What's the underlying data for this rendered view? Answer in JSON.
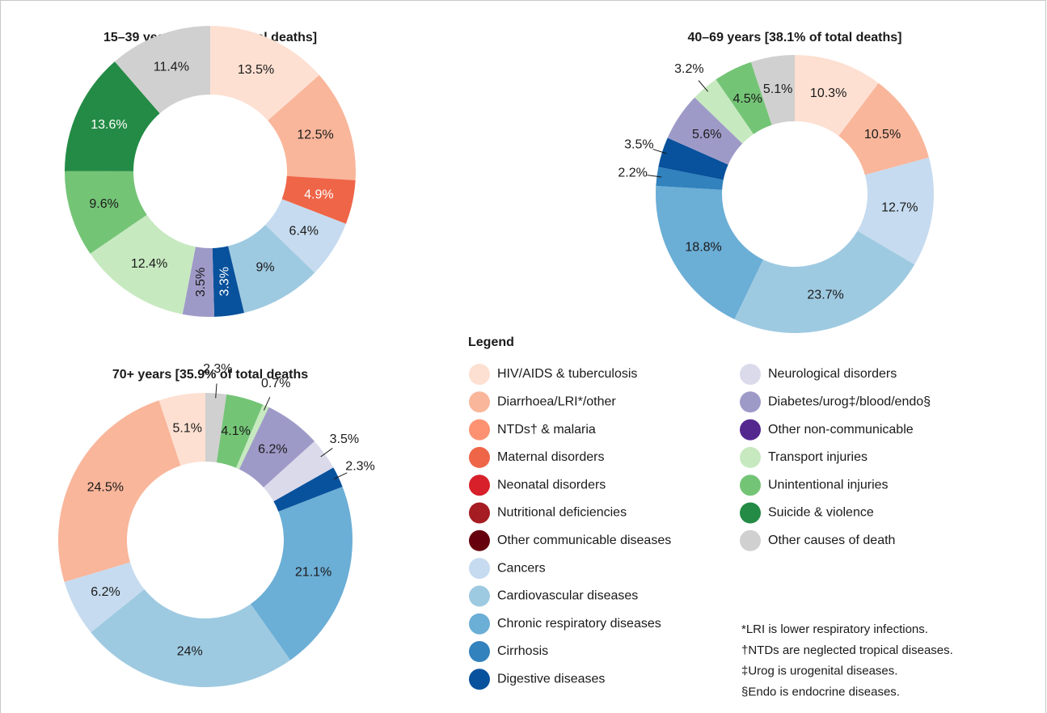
{
  "chart_data": [
    {
      "type": "pie",
      "title": "15–39 years [11.9% of total deaths]",
      "values": [
        13.5,
        12.5,
        4.9,
        6.4,
        9,
        3.3,
        3.5,
        12.4,
        9.6,
        13.6,
        11.4
      ],
      "value_labels": [
        "13.5%",
        "12.5%",
        "4.9%",
        "6.4%",
        "9%",
        "3.3%",
        "3.5%",
        "12.4%",
        "9.6%",
        "13.6%",
        "11.4%"
      ],
      "colors": [
        "#fde0d2",
        "#f9b69b",
        "#ef6548",
        "#c6dbef",
        "#9ecae1",
        "#08519c",
        "#9e9ac8",
        "#c7e9c0",
        "#74c476",
        "#238b45",
        "#d0d0d0"
      ],
      "small_labels": "rotated"
    },
    {
      "type": "pie",
      "title": "40–69 years [38.1% of total deaths]",
      "values": [
        10.3,
        10.5,
        12.7,
        23.7,
        18.8,
        2.2,
        3.5,
        5.6,
        3.2,
        4.5,
        5.1
      ],
      "value_labels": [
        "10.3%",
        "10.5%",
        "12.7%",
        "23.7%",
        "18.8%",
        "2.2%",
        "3.5%",
        "5.6%",
        "3.2%",
        "4.5%",
        "5.1%"
      ],
      "colors": [
        "#fde0d2",
        "#f9b69b",
        "#c6dbef",
        "#9ecae1",
        "#6baed6",
        "#3182bd",
        "#08519c",
        "#9e9ac8",
        "#c7e9c0",
        "#74c476",
        "#d0d0d0"
      ],
      "small_labels": "outside"
    },
    {
      "type": "pie",
      "title": "70+ years [35.9% of total deaths",
      "values": [
        2.3,
        4.1,
        0.7,
        6.2,
        3.5,
        2.3,
        21.1,
        24,
        6.2,
        24.5,
        5.1
      ],
      "value_labels": [
        "2.3%",
        "4.1%",
        "0.7%",
        "6.2%",
        "3.5%",
        "2.3%",
        "21.1%",
        "24%",
        "6.2%",
        "24.5%",
        "5.1%"
      ],
      "colors": [
        "#d0d0d0",
        "#74c476",
        "#c7e9c0",
        "#9e9ac8",
        "#dadaeb",
        "#08519c",
        "#6baed6",
        "#9ecae1",
        "#c6dbef",
        "#f9b69b",
        "#fde0d2"
      ],
      "small_labels": "outside"
    }
  ],
  "legend": {
    "title": "Legend",
    "items": [
      {
        "label": "HIV/AIDS & tuberculosis",
        "color": "#fde0d2"
      },
      {
        "label": "Diarrhoea/LRI*/other",
        "color": "#f9b69b"
      },
      {
        "label": "NTDs† & malaria",
        "color": "#fc9272"
      },
      {
        "label": "Maternal disorders",
        "color": "#ef6548"
      },
      {
        "label": "Neonatal disorders",
        "color": "#d7202a"
      },
      {
        "label": "Nutritional deficiencies",
        "color": "#a51c22"
      },
      {
        "label": "Other communicable diseases",
        "color": "#67000d"
      },
      {
        "label": "Cancers",
        "color": "#c6dbef"
      },
      {
        "label": "Cardiovascular diseases",
        "color": "#9ecae1"
      },
      {
        "label": "Chronic respiratory diseases",
        "color": "#6baed6"
      },
      {
        "label": "Cirrhosis",
        "color": "#3182bd"
      },
      {
        "label": "Digestive diseases",
        "color": "#08519c"
      },
      {
        "label": "Neurological disorders",
        "color": "#dadaeb"
      },
      {
        "label": "Diabetes/urog‡/blood/endo§",
        "color": "#9e9ac8"
      },
      {
        "label": "Other non-communicable",
        "color": "#54278f"
      },
      {
        "label": "Transport injuries",
        "color": "#c7e9c0"
      },
      {
        "label": "Unintentional injuries",
        "color": "#74c476"
      },
      {
        "label": "Suicide & violence",
        "color": "#238b45"
      },
      {
        "label": "Other causes of death",
        "color": "#d0d0d0"
      }
    ]
  },
  "footnotes": [
    "*LRI is lower respiratory infections.",
    "†NTDs are neglected tropical diseases.",
    "‡Urog is urogenital diseases.",
    "§Endo is endocrine diseases."
  ]
}
